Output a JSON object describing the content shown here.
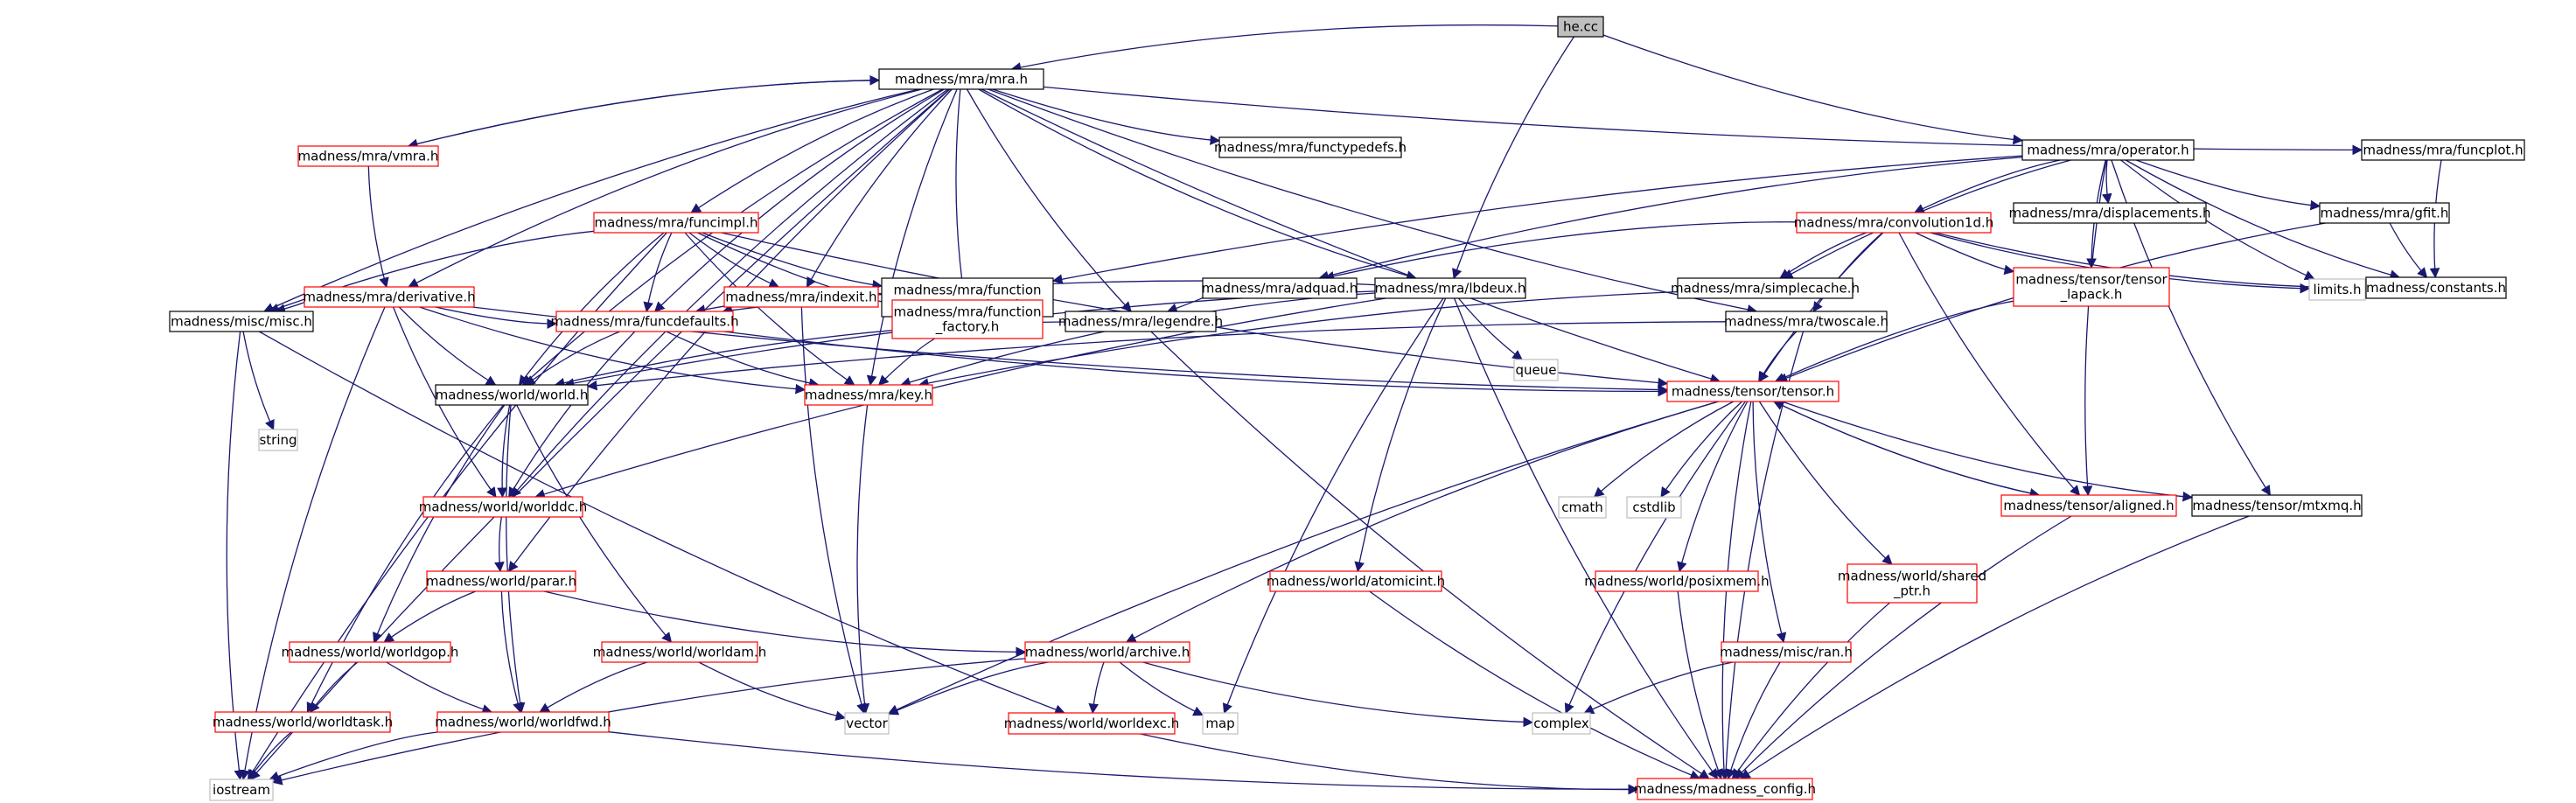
{
  "colors": {
    "edge": "#191970",
    "root_fill": "#bfbfbf",
    "black_border": "#000000",
    "red_border": "#ff0000",
    "gray_border": "#bfbfbf"
  },
  "nodes": [
    {
      "id": "he",
      "label": "he.cc",
      "style": "root"
    },
    {
      "id": "mra",
      "label": "madness/mra/mra.h",
      "style": "black"
    },
    {
      "id": "vmra",
      "label": "madness/mra/vmra.h",
      "style": "red"
    },
    {
      "id": "functypedefs",
      "label": "madness/mra/functypedefs.h",
      "style": "black"
    },
    {
      "id": "operator",
      "label": "madness/mra/operator.h",
      "style": "black"
    },
    {
      "id": "funcplot",
      "label": "madness/mra/funcplot.h",
      "style": "black"
    },
    {
      "id": "funcimpl",
      "label": "madness/mra/funcimpl.h",
      "style": "red"
    },
    {
      "id": "convolution1d",
      "label": "madness/mra/convolution1d.h",
      "style": "red"
    },
    {
      "id": "displacements",
      "label": "madness/mra/displacements.h",
      "style": "black"
    },
    {
      "id": "gfit",
      "label": "madness/mra/gfit.h",
      "style": "black"
    },
    {
      "id": "derivative",
      "label": "madness/mra/derivative.h",
      "style": "red"
    },
    {
      "id": "indexit",
      "label": "madness/mra/indexit.h",
      "style": "red"
    },
    {
      "id": "fcd",
      "label": "madness/mra/function\n_common_data.h",
      "style": "black"
    },
    {
      "id": "adquad",
      "label": "madness/mra/adquad.h",
      "style": "black"
    },
    {
      "id": "lbdeux",
      "label": "madness/mra/lbdeux.h",
      "style": "black"
    },
    {
      "id": "simplecache",
      "label": "madness/mra/simplecache.h",
      "style": "black"
    },
    {
      "id": "tlapack",
      "label": "madness/tensor/tensor\n_lapack.h",
      "style": "red"
    },
    {
      "id": "limits",
      "label": "limits.h",
      "style": "gray"
    },
    {
      "id": "constants",
      "label": "madness/constants.h",
      "style": "black"
    },
    {
      "id": "misc",
      "label": "madness/misc/misc.h",
      "style": "black"
    },
    {
      "id": "funcdefaults",
      "label": "madness/mra/funcdefaults.h",
      "style": "red"
    },
    {
      "id": "ffactory",
      "label": "madness/mra/function\n_factory.h",
      "style": "red"
    },
    {
      "id": "legendre",
      "label": "madness/mra/legendre.h",
      "style": "black"
    },
    {
      "id": "queue",
      "label": "queue",
      "style": "gray"
    },
    {
      "id": "twoscale",
      "label": "madness/mra/twoscale.h",
      "style": "black"
    },
    {
      "id": "string",
      "label": "string",
      "style": "gray"
    },
    {
      "id": "world",
      "label": "madness/world/world.h",
      "style": "black"
    },
    {
      "id": "key",
      "label": "madness/mra/key.h",
      "style": "red"
    },
    {
      "id": "tensor",
      "label": "madness/tensor/tensor.h",
      "style": "red"
    },
    {
      "id": "worlddc",
      "label": "madness/world/worlddc.h",
      "style": "red"
    },
    {
      "id": "cmath",
      "label": "cmath",
      "style": "gray"
    },
    {
      "id": "cstdlib",
      "label": "cstdlib",
      "style": "gray"
    },
    {
      "id": "aligned",
      "label": "madness/tensor/aligned.h",
      "style": "red"
    },
    {
      "id": "mtxmq",
      "label": "madness/tensor/mtxmq.h",
      "style": "black"
    },
    {
      "id": "parar",
      "label": "madness/world/parar.h",
      "style": "red"
    },
    {
      "id": "atomicint",
      "label": "madness/world/atomicint.h",
      "style": "red"
    },
    {
      "id": "posixmem",
      "label": "madness/world/posixmem.h",
      "style": "red"
    },
    {
      "id": "sharedptr",
      "label": "madness/world/shared\n_ptr.h",
      "style": "red"
    },
    {
      "id": "worldgop",
      "label": "madness/world/worldgop.h",
      "style": "red"
    },
    {
      "id": "worldam",
      "label": "madness/world/worldam.h",
      "style": "red"
    },
    {
      "id": "archive",
      "label": "madness/world/archive.h",
      "style": "red"
    },
    {
      "id": "ran",
      "label": "madness/misc/ran.h",
      "style": "red"
    },
    {
      "id": "worldtask",
      "label": "madness/world/worldtask.h",
      "style": "red"
    },
    {
      "id": "worldfwd",
      "label": "madness/world/worldfwd.h",
      "style": "red"
    },
    {
      "id": "vector",
      "label": "vector",
      "style": "gray"
    },
    {
      "id": "map",
      "label": "map",
      "style": "gray"
    },
    {
      "id": "worldexc",
      "label": "madness/world/worldexc.h",
      "style": "red"
    },
    {
      "id": "complex",
      "label": "complex",
      "style": "gray"
    },
    {
      "id": "iostream",
      "label": "iostream",
      "style": "gray"
    },
    {
      "id": "config",
      "label": "madness/madness_config.h",
      "style": "red"
    }
  ],
  "edges": [
    [
      "he",
      "mra"
    ],
    [
      "he",
      "operator"
    ],
    [
      "he",
      "lbdeux"
    ],
    [
      "mra",
      "vmra"
    ],
    [
      "vmra",
      "mra"
    ],
    [
      "mra",
      "functypedefs"
    ],
    [
      "mra",
      "funcplot"
    ],
    [
      "mra",
      "funcimpl"
    ],
    [
      "mra",
      "derivative"
    ],
    [
      "mra",
      "indexit"
    ],
    [
      "mra",
      "lbdeux"
    ],
    [
      "mra",
      "misc"
    ],
    [
      "mra",
      "funcdefaults"
    ],
    [
      "mra",
      "ffactory"
    ],
    [
      "mra",
      "legendre"
    ],
    [
      "mra",
      "twoscale"
    ],
    [
      "mra",
      "world"
    ],
    [
      "mra",
      "key"
    ],
    [
      "mra",
      "tensor"
    ],
    [
      "mra",
      "worlddc"
    ],
    [
      "mra",
      "parar"
    ],
    [
      "mra",
      "iostream"
    ],
    [
      "vmra",
      "derivative"
    ],
    [
      "operator",
      "convolution1d"
    ],
    [
      "operator",
      "displacements"
    ],
    [
      "operator",
      "gfit"
    ],
    [
      "operator",
      "adquad"
    ],
    [
      "operator",
      "simplecache"
    ],
    [
      "operator",
      "tlapack"
    ],
    [
      "operator",
      "limits"
    ],
    [
      "operator",
      "constants"
    ],
    [
      "operator",
      "fcd"
    ],
    [
      "operator",
      "aligned"
    ],
    [
      "operator",
      "mtxmq"
    ],
    [
      "funcplot",
      "constants"
    ],
    [
      "funcimpl",
      "indexit"
    ],
    [
      "funcimpl",
      "fcd"
    ],
    [
      "funcimpl",
      "misc"
    ],
    [
      "funcimpl",
      "funcdefaults"
    ],
    [
      "funcimpl",
      "ffactory"
    ],
    [
      "funcimpl",
      "world"
    ],
    [
      "funcimpl",
      "key"
    ],
    [
      "funcimpl",
      "tensor"
    ],
    [
      "funcimpl",
      "iostream"
    ],
    [
      "convolution1d",
      "adquad"
    ],
    [
      "convolution1d",
      "simplecache"
    ],
    [
      "convolution1d",
      "tlapack"
    ],
    [
      "convolution1d",
      "limits"
    ],
    [
      "convolution1d",
      "constants"
    ],
    [
      "convolution1d",
      "twoscale"
    ],
    [
      "convolution1d",
      "tensor"
    ],
    [
      "convolution1d",
      "aligned"
    ],
    [
      "gfit",
      "constants"
    ],
    [
      "gfit",
      "tensor"
    ],
    [
      "derivative",
      "misc"
    ],
    [
      "derivative",
      "funcdefaults"
    ],
    [
      "derivative",
      "world"
    ],
    [
      "derivative",
      "key"
    ],
    [
      "derivative",
      "tensor"
    ],
    [
      "derivative",
      "worlddc"
    ],
    [
      "derivative",
      "iostream"
    ],
    [
      "indexit",
      "vector"
    ],
    [
      "fcd",
      "funcdefaults"
    ],
    [
      "adquad",
      "legendre"
    ],
    [
      "lbdeux",
      "funcdefaults"
    ],
    [
      "lbdeux",
      "queue"
    ],
    [
      "lbdeux",
      "key"
    ],
    [
      "lbdeux",
      "worlddc"
    ],
    [
      "lbdeux",
      "atomicint"
    ],
    [
      "lbdeux",
      "map"
    ],
    [
      "lbdeux",
      "config"
    ],
    [
      "lbdeux",
      "world"
    ],
    [
      "simplecache",
      "key"
    ],
    [
      "tlapack",
      "tensor"
    ],
    [
      "misc",
      "string"
    ],
    [
      "misc",
      "iostream"
    ],
    [
      "misc",
      "worldexc"
    ],
    [
      "funcdefaults",
      "world"
    ],
    [
      "funcdefaults",
      "key"
    ],
    [
      "funcdefaults",
      "tensor"
    ],
    [
      "funcdefaults",
      "worlddc"
    ],
    [
      "ffactory",
      "key"
    ],
    [
      "legendre",
      "config"
    ],
    [
      "legendre",
      "world"
    ],
    [
      "twoscale",
      "tensor"
    ],
    [
      "twoscale",
      "config"
    ],
    [
      "twoscale",
      "world"
    ],
    [
      "world",
      "worlddc"
    ],
    [
      "world",
      "worldgop"
    ],
    [
      "world",
      "worldam"
    ],
    [
      "world",
      "worldfwd"
    ],
    [
      "world",
      "worldtask"
    ],
    [
      "key",
      "vector"
    ],
    [
      "tensor",
      "cmath"
    ],
    [
      "tensor",
      "cstdlib"
    ],
    [
      "tensor",
      "aligned"
    ],
    [
      "aligned",
      "tensor"
    ],
    [
      "tensor",
      "mtxmq"
    ],
    [
      "tensor",
      "posixmem"
    ],
    [
      "tensor",
      "sharedptr"
    ],
    [
      "tensor",
      "ran"
    ],
    [
      "tensor",
      "archive"
    ],
    [
      "tensor",
      "vector"
    ],
    [
      "tensor",
      "complex"
    ],
    [
      "tensor",
      "config"
    ],
    [
      "worlddc",
      "parar"
    ],
    [
      "parar",
      "archive"
    ],
    [
      "parar",
      "worldgop"
    ],
    [
      "parar",
      "worldfwd"
    ],
    [
      "aligned",
      "config"
    ],
    [
      "mtxmq",
      "config"
    ],
    [
      "atomicint",
      "config"
    ],
    [
      "posixmem",
      "config"
    ],
    [
      "sharedptr",
      "config"
    ],
    [
      "worldgop",
      "worldtask"
    ],
    [
      "worldgop",
      "worldfwd"
    ],
    [
      "worldam",
      "worldfwd"
    ],
    [
      "worldam",
      "vector"
    ],
    [
      "archive",
      "vector"
    ],
    [
      "archive",
      "map"
    ],
    [
      "archive",
      "worldexc"
    ],
    [
      "archive",
      "complex"
    ],
    [
      "archive",
      "iostream"
    ],
    [
      "ran",
      "complex"
    ],
    [
      "ran",
      "config"
    ],
    [
      "worldtask",
      "iostream"
    ],
    [
      "worldfwd",
      "iostream"
    ],
    [
      "worldfwd",
      "config"
    ],
    [
      "worldexc",
      "config"
    ]
  ]
}
